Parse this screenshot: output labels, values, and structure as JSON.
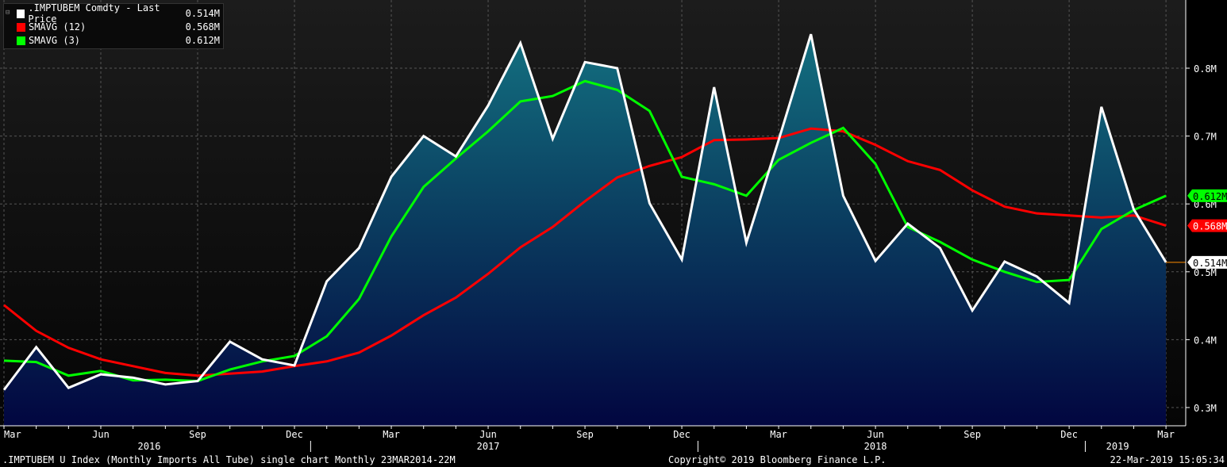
{
  "legend": {
    "items": [
      {
        "label": ".IMPTUBEM Comdty - Last Price",
        "value": "0.514M",
        "color": "#ffffff"
      },
      {
        "label": "SMAVG (12)",
        "value": "0.568M",
        "color": "#ff0000"
      },
      {
        "label": "SMAVG (3)",
        "value": "0.612M",
        "color": "#00ff00"
      }
    ]
  },
  "footer": {
    "left": ".IMPTUBEM U Index (Monthly Imports All Tube) single chart  Monthly 23MAR2014-22M",
    "center": "Copyright© 2019 Bloomberg Finance L.P.",
    "right": "22-Mar-2019 15:05:34"
  },
  "chart_data": {
    "type": "area",
    "title": "",
    "x": [
      "2016-03",
      "2016-04",
      "2016-05",
      "2016-06",
      "2016-07",
      "2016-08",
      "2016-09",
      "2016-10",
      "2016-11",
      "2016-12",
      "2017-01",
      "2017-02",
      "2017-03",
      "2017-04",
      "2017-05",
      "2017-06",
      "2017-07",
      "2017-08",
      "2017-09",
      "2017-10",
      "2017-11",
      "2017-12",
      "2018-01",
      "2018-02",
      "2018-03",
      "2018-04",
      "2018-05",
      "2018-06",
      "2018-07",
      "2018-08",
      "2018-09",
      "2018-10",
      "2018-11",
      "2018-12",
      "2019-01",
      "2019-02",
      "2019-03"
    ],
    "x_tick_labels": [
      {
        "index": 0,
        "label": "Mar"
      },
      {
        "index": 3,
        "label": "Jun"
      },
      {
        "index": 6,
        "label": "Sep"
      },
      {
        "index": 9,
        "label": "Dec"
      },
      {
        "index": 12,
        "label": "Mar"
      },
      {
        "index": 15,
        "label": "Jun"
      },
      {
        "index": 18,
        "label": "Sep"
      },
      {
        "index": 21,
        "label": "Dec"
      },
      {
        "index": 24,
        "label": "Mar"
      },
      {
        "index": 27,
        "label": "Jun"
      },
      {
        "index": 30,
        "label": "Sep"
      },
      {
        "index": 33,
        "label": "Dec"
      },
      {
        "index": 36,
        "label": "Mar"
      }
    ],
    "year_labels": [
      {
        "index": 4.5,
        "label": "2016"
      },
      {
        "index": 15,
        "label": "2017"
      },
      {
        "index": 27,
        "label": "2018"
      },
      {
        "index": 34.5,
        "label": "2019"
      }
    ],
    "year_dividers": [
      9.5,
      21.5,
      33.5
    ],
    "ylim": [
      0.27,
      0.9
    ],
    "y_ticks": [
      0.3,
      0.4,
      0.5,
      0.6,
      0.7,
      0.8
    ],
    "y_tick_labels": [
      "0.3M",
      "0.4M",
      "0.5M",
      "0.6M",
      "0.7M",
      "0.8M"
    ],
    "series": [
      {
        "name": ".IMPTUBEM Comdty - Last Price",
        "color": "#ffffff",
        "last_label": "0.514M",
        "values": [
          0.326,
          0.389,
          0.329,
          0.349,
          0.344,
          0.334,
          0.339,
          0.397,
          0.371,
          0.362,
          0.486,
          0.535,
          0.64,
          0.7,
          0.67,
          0.745,
          0.837,
          0.696,
          0.809,
          0.8,
          0.601,
          0.518,
          0.772,
          0.543,
          0.694,
          0.85,
          0.612,
          0.516,
          0.571,
          0.535,
          0.443,
          0.515,
          0.493,
          0.454,
          0.743,
          0.592,
          0.514
        ]
      },
      {
        "name": "SMAVG (12)",
        "color": "#ff0000",
        "last_label": "0.568M",
        "values": [
          0.451,
          0.413,
          0.388,
          0.371,
          0.361,
          0.351,
          0.347,
          0.35,
          0.353,
          0.361,
          0.368,
          0.381,
          0.406,
          0.436,
          0.462,
          0.497,
          0.536,
          0.566,
          0.604,
          0.639,
          0.656,
          0.669,
          0.694,
          0.695,
          0.697,
          0.711,
          0.707,
          0.687,
          0.663,
          0.65,
          0.62,
          0.596,
          0.586,
          0.583,
          0.58,
          0.583,
          0.568
        ]
      },
      {
        "name": "SMAVG (3)",
        "color": "#00ff00",
        "last_label": "0.612M",
        "values": [
          0.369,
          0.367,
          0.347,
          0.354,
          0.34,
          0.341,
          0.339,
          0.356,
          0.368,
          0.376,
          0.405,
          0.46,
          0.552,
          0.625,
          0.667,
          0.707,
          0.751,
          0.759,
          0.781,
          0.768,
          0.737,
          0.64,
          0.629,
          0.612,
          0.665,
          0.69,
          0.712,
          0.659,
          0.566,
          0.544,
          0.518,
          0.5,
          0.485,
          0.488,
          0.563,
          0.591,
          0.612
        ]
      }
    ]
  }
}
